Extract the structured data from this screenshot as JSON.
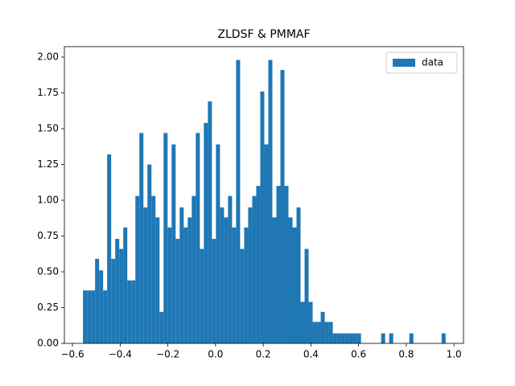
{
  "chart_data": {
    "type": "histogram",
    "title": "ZLDSF & PMMAF",
    "series": [
      {
        "name": "data",
        "color": "#1f77b4",
        "values": [
          0.37,
          0.37,
          0.37,
          0.59,
          0.51,
          0.37,
          1.32,
          0.59,
          0.73,
          0.66,
          0.81,
          0.44,
          0.44,
          1.03,
          1.47,
          0.95,
          1.25,
          1.03,
          0.88,
          0.22,
          1.47,
          0.81,
          1.39,
          0.73,
          0.95,
          0.81,
          0.88,
          1.03,
          1.47,
          0.66,
          1.54,
          1.69,
          0.73,
          1.39,
          0.95,
          0.88,
          1.03,
          0.81,
          1.98,
          0.66,
          0.81,
          0.95,
          1.03,
          1.1,
          1.76,
          1.39,
          1.98,
          0.88,
          1.1,
          1.91,
          1.1,
          0.88,
          0.81,
          0.95,
          0.29,
          0.66,
          0.29,
          0.15,
          0.15,
          0.22,
          0.15,
          0.15,
          0.07,
          0.07,
          0.07,
          0.07,
          0.07,
          0.07,
          0.07,
          0,
          0,
          0,
          0,
          0,
          0.07,
          0,
          0.07,
          0,
          0,
          0,
          0,
          0.07,
          0,
          0,
          0,
          0,
          0,
          0,
          0,
          0.07
        ]
      }
    ],
    "bins": [
      -0.556,
      -0.5391,
      -0.5222,
      -0.5053,
      -0.4884,
      -0.4715,
      -0.4546,
      -0.4377,
      -0.4208,
      -0.4039,
      -0.387,
      -0.3701,
      -0.3532,
      -0.3363,
      -0.3194,
      -0.3025,
      -0.2856,
      -0.2687,
      -0.2518,
      -0.2349,
      -0.218,
      -0.2011,
      -0.1842,
      -0.1673,
      -0.1504,
      -0.1335,
      -0.1166,
      -0.0997,
      -0.0828,
      -0.0659,
      -0.049,
      -0.0321,
      -0.0152,
      0.0017,
      0.0186,
      0.0355,
      0.0524,
      0.0693,
      0.0862,
      0.1031,
      0.12,
      0.1369,
      0.1538,
      0.1707,
      0.1876,
      0.2045,
      0.2214,
      0.2383,
      0.2552,
      0.2721,
      0.289,
      0.3059,
      0.3228,
      0.3397,
      0.3566,
      0.3735,
      0.3904,
      0.4073,
      0.4242,
      0.4411,
      0.458,
      0.4749,
      0.4918,
      0.5087,
      0.5256,
      0.5425,
      0.5594,
      0.5763,
      0.5932,
      0.6101,
      0.627,
      0.6439,
      0.6608,
      0.6777,
      0.6946,
      0.7115,
      0.7284,
      0.7453,
      0.7622,
      0.7791,
      0.796,
      0.8129,
      0.8298,
      0.8467,
      0.8636,
      0.8805,
      0.8974,
      0.9143,
      0.9312,
      0.9481,
      0.965
    ],
    "xlim": [
      -0.634,
      1.04
    ],
    "ylim": [
      0,
      2.073
    ],
    "xticks": [
      {
        "value": -0.6,
        "label": "−0.6"
      },
      {
        "value": -0.4,
        "label": "−0.4"
      },
      {
        "value": -0.2,
        "label": "−0.2"
      },
      {
        "value": 0,
        "label": "0.0"
      },
      {
        "value": 0.2,
        "label": "0.2"
      },
      {
        "value": 0.4,
        "label": "0.4"
      },
      {
        "value": 0.6,
        "label": "0.6"
      },
      {
        "value": 0.8,
        "label": "0.8"
      },
      {
        "value": 1,
        "label": "1.0"
      }
    ],
    "yticks": [
      {
        "value": 0,
        "label": "0.00"
      },
      {
        "value": 0.25,
        "label": "0.25"
      },
      {
        "value": 0.5,
        "label": "0.50"
      },
      {
        "value": 0.75,
        "label": "0.75"
      },
      {
        "value": 1,
        "label": "1.00"
      },
      {
        "value": 1.25,
        "label": "1.25"
      },
      {
        "value": 1.5,
        "label": "1.50"
      },
      {
        "value": 1.75,
        "label": "1.75"
      },
      {
        "value": 2,
        "label": "2.00"
      }
    ],
    "grid": false,
    "legend": "upper right"
  }
}
